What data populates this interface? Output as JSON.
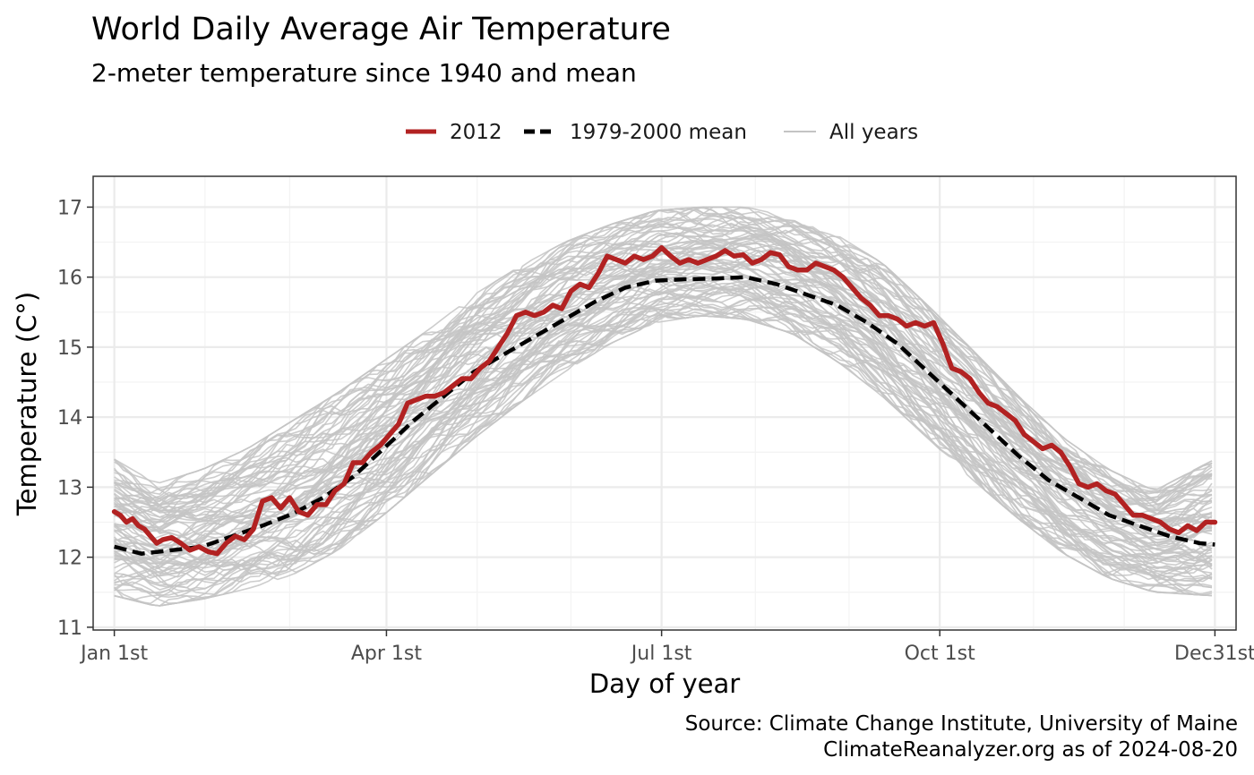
{
  "colors": {
    "highlight": "#b22222",
    "mean": "#000000",
    "all_years": "#c4c4c4"
  },
  "chart_data": {
    "type": "line",
    "title": "World Daily Average Air Temperature",
    "subtitle": "2-meter temperature since 1940 and mean",
    "xlabel": "Day of year",
    "ylabel": "Temperature (C°)",
    "caption": [
      "Source: Climate Change Institute, University of Maine",
      "ClimateReanalyzer.org as of 2024-08-20"
    ],
    "xlim": [
      -6,
      372
    ],
    "ylim": [
      10.96,
      17.44
    ],
    "x_ticks": [
      {
        "day": 1,
        "label": "Jan 1st"
      },
      {
        "day": 91,
        "label": "Apr 1st"
      },
      {
        "day": 182,
        "label": "Jul 1st"
      },
      {
        "day": 274,
        "label": "Oct 1st"
      },
      {
        "day": 365,
        "label": "Dec31st"
      }
    ],
    "x_minor_ticks": [
      31,
      59,
      121,
      152,
      213,
      244,
      305,
      335
    ],
    "y_ticks": [
      11,
      12,
      13,
      14,
      15,
      16,
      17
    ],
    "grid": true,
    "legend_position": "top",
    "legend": [
      "2012",
      "1979-2000 mean",
      "All years"
    ],
    "series": [
      {
        "name": "2012",
        "style": "solid-thick",
        "x": [
          1,
          3,
          5,
          7,
          9,
          11,
          13,
          15,
          17,
          20,
          23,
          26,
          29,
          32,
          35,
          38,
          41,
          44,
          47,
          50,
          53,
          56,
          59,
          62,
          65,
          68,
          71,
          74,
          77,
          80,
          83,
          86,
          89,
          92,
          95,
          98,
          101,
          104,
          107,
          110,
          113,
          116,
          119,
          122,
          125,
          128,
          131,
          134,
          137,
          140,
          143,
          146,
          149,
          152,
          155,
          158,
          161,
          164,
          167,
          170,
          173,
          176,
          179,
          182,
          185,
          188,
          191,
          194,
          197,
          200,
          203,
          206,
          209,
          212,
          215,
          218,
          221,
          224,
          227,
          230,
          233,
          236,
          239,
          242,
          245,
          248,
          251,
          254,
          257,
          260,
          263,
          266,
          269,
          272,
          275,
          278,
          281,
          284,
          287,
          290,
          293,
          296,
          299,
          302,
          305,
          308,
          311,
          314,
          317,
          320,
          323,
          326,
          329,
          332,
          335,
          338,
          341,
          344,
          347,
          350,
          353,
          356,
          359,
          362,
          365
        ],
        "values": [
          12.65,
          12.6,
          12.5,
          12.55,
          12.45,
          12.4,
          12.3,
          12.2,
          12.25,
          12.28,
          12.2,
          12.1,
          12.15,
          12.08,
          12.05,
          12.2,
          12.3,
          12.25,
          12.4,
          12.8,
          12.85,
          12.7,
          12.85,
          12.65,
          12.6,
          12.75,
          12.75,
          12.95,
          13.05,
          13.35,
          13.35,
          13.5,
          13.6,
          13.75,
          13.9,
          14.2,
          14.25,
          14.3,
          14.3,
          14.35,
          14.45,
          14.55,
          14.55,
          14.7,
          14.8,
          15.0,
          15.2,
          15.45,
          15.5,
          15.45,
          15.5,
          15.6,
          15.55,
          15.8,
          15.9,
          15.85,
          16.05,
          16.3,
          16.25,
          16.2,
          16.3,
          16.25,
          16.3,
          16.42,
          16.3,
          16.2,
          16.25,
          16.2,
          16.25,
          16.3,
          16.38,
          16.3,
          16.32,
          16.2,
          16.25,
          16.35,
          16.32,
          16.15,
          16.1,
          16.1,
          16.2,
          16.15,
          16.1,
          16.0,
          15.85,
          15.7,
          15.6,
          15.45,
          15.45,
          15.4,
          15.3,
          15.35,
          15.3,
          15.35,
          15.05,
          14.7,
          14.65,
          14.55,
          14.35,
          14.2,
          14.15,
          14.05,
          13.95,
          13.75,
          13.65,
          13.55,
          13.6,
          13.5,
          13.3,
          13.05,
          13.0,
          13.05,
          12.95,
          12.9,
          12.75,
          12.6,
          12.6,
          12.55,
          12.5,
          12.4,
          12.35,
          12.45,
          12.38,
          12.5,
          12.5
        ]
      },
      {
        "name": "1979-2000 mean",
        "style": "dashed",
        "x": [
          1,
          10,
          20,
          30,
          40,
          50,
          60,
          70,
          80,
          90,
          100,
          110,
          120,
          130,
          140,
          150,
          160,
          170,
          180,
          190,
          200,
          210,
          220,
          230,
          240,
          250,
          260,
          270,
          280,
          290,
          300,
          310,
          320,
          330,
          340,
          350,
          360,
          365
        ],
        "values": [
          12.15,
          12.05,
          12.1,
          12.15,
          12.3,
          12.45,
          12.62,
          12.85,
          13.15,
          13.55,
          13.95,
          14.3,
          14.65,
          14.9,
          15.15,
          15.4,
          15.65,
          15.85,
          15.95,
          15.97,
          15.98,
          16.0,
          15.9,
          15.75,
          15.6,
          15.35,
          15.05,
          14.65,
          14.25,
          13.85,
          13.45,
          13.1,
          12.85,
          12.6,
          12.45,
          12.3,
          12.2,
          12.18
        ]
      },
      {
        "name": "All years",
        "style": "thin-gray",
        "x": [
          1,
          15,
          30,
          45,
          60,
          75,
          90,
          105,
          120,
          135,
          150,
          165,
          180,
          195,
          210,
          225,
          240,
          255,
          270,
          285,
          300,
          315,
          330,
          345,
          365
        ],
        "lower": [
          11.45,
          11.3,
          11.4,
          11.55,
          11.75,
          12.1,
          12.6,
          13.15,
          13.7,
          14.2,
          14.65,
          15.05,
          15.35,
          15.45,
          15.4,
          15.2,
          14.8,
          14.3,
          13.7,
          13.1,
          12.55,
          12.05,
          11.7,
          11.5,
          11.45
        ],
        "upper": [
          13.4,
          13.05,
          13.25,
          13.55,
          13.95,
          14.35,
          14.8,
          15.25,
          15.75,
          16.15,
          16.5,
          16.75,
          16.95,
          17.0,
          17.0,
          16.85,
          16.6,
          16.2,
          15.6,
          14.95,
          14.3,
          13.7,
          13.25,
          12.95,
          13.4
        ]
      }
    ]
  }
}
